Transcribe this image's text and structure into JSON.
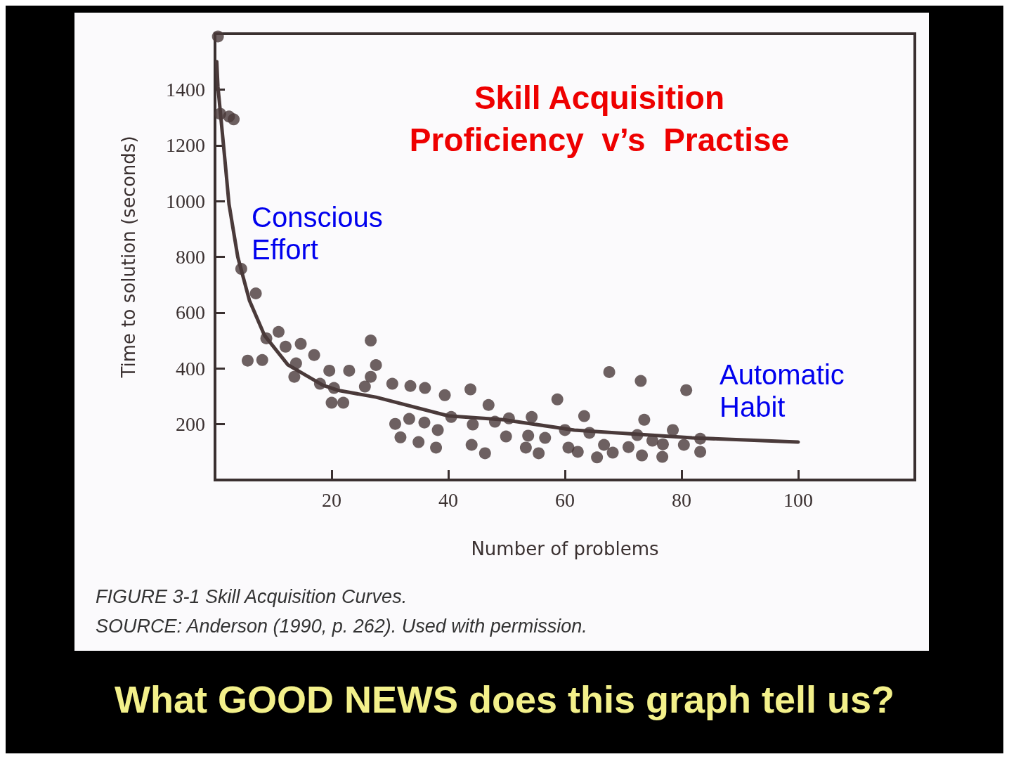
{
  "chart_data": {
    "type": "scatter",
    "title": "Skill Acquisition\nProficiency  v’s  Practise",
    "xlabel": "Number of problems",
    "ylabel": "Time to solution (seconds)",
    "xlim": [
      0,
      120
    ],
    "xticks": [
      {
        "value": 0,
        "label": null
      },
      20,
      40,
      60,
      80,
      100,
      {
        "value": 120,
        "label": null
      }
    ],
    "ylim": [
      0,
      1600
    ],
    "yticks": [
      {
        "value": 0,
        "label": null
      },
      200,
      400,
      600,
      800,
      1000,
      1200,
      1400,
      {
        "value": 1600,
        "label": null
      }
    ],
    "grid": false,
    "annotations": [
      "Conscious\nEffort",
      "Automatic\nHabit",
      "FIGURE 3-1  Skill Acquisition Curves.",
      "SOURCE: Anderson (1990, p. 262).  Used with permission.",
      "What GOOD NEWS does this graph tell us?"
    ],
    "series": [
      {
        "marker": "circle",
        "color": "#4a3a3a",
        "x": [
          0.5,
          0.9,
          2.4,
          3.2,
          4.5,
          7,
          5.6,
          8.1,
          8.8,
          10.9,
          12.1,
          14.7,
          17,
          13.9,
          13.6,
          18,
          19.6,
          20.4,
          23,
          20,
          22,
          26.7,
          27.6,
          26.7,
          25.7,
          30.4,
          33.5,
          36,
          39.4,
          43.8,
          46.9,
          30.9,
          33.3,
          35.9,
          38.2,
          31.8,
          34.9,
          37.9,
          40.5,
          44.2,
          44,
          46.3,
          48,
          50.4,
          49.9,
          54.3,
          53.7,
          56.6,
          53.3,
          55.5,
          58.7,
          60,
          63.3,
          64.2,
          60.6,
          62.2,
          66.7,
          65.5,
          68.2,
          70.9,
          67.6,
          73,
          73.6,
          72.4,
          73.2,
          75,
          76.8,
          76.7,
          78.5,
          80.4,
          80.8,
          83.2,
          83.2
        ],
        "values": [
          1590,
          1313,
          1303,
          1293,
          757,
          669,
          428,
          430,
          508,
          531,
          478,
          488,
          448,
          418,
          370,
          345,
          392,
          330,
          392,
          277,
          277,
          500,
          412,
          370,
          335,
          345,
          337,
          330,
          304,
          325,
          269,
          201,
          219,
          206,
          179,
          153,
          136,
          116,
          226,
          199,
          126,
          96,
          209,
          221,
          156,
          226,
          159,
          151,
          116,
          96,
          289,
          179,
          229,
          169,
          116,
          101,
          126,
          81,
          98,
          118,
          387,
          355,
          216,
          161,
          88,
          141,
          128,
          83,
          179,
          126,
          322,
          148,
          101
        ]
      },
      {
        "type": "line",
        "marker": "none",
        "color": "#4a3a3a",
        "x": [
          0.3,
          0.5,
          1.7,
          2.4,
          3.9,
          5.9,
          8.5,
          12.5,
          18.5,
          21,
          27.6,
          40,
          49.5,
          61.6,
          81.8,
          100
        ],
        "values": [
          1500,
          1410,
          1147,
          989,
          800,
          644,
          518,
          413,
          340,
          322,
          297,
          230,
          216,
          179,
          151,
          136
        ]
      }
    ]
  }
}
